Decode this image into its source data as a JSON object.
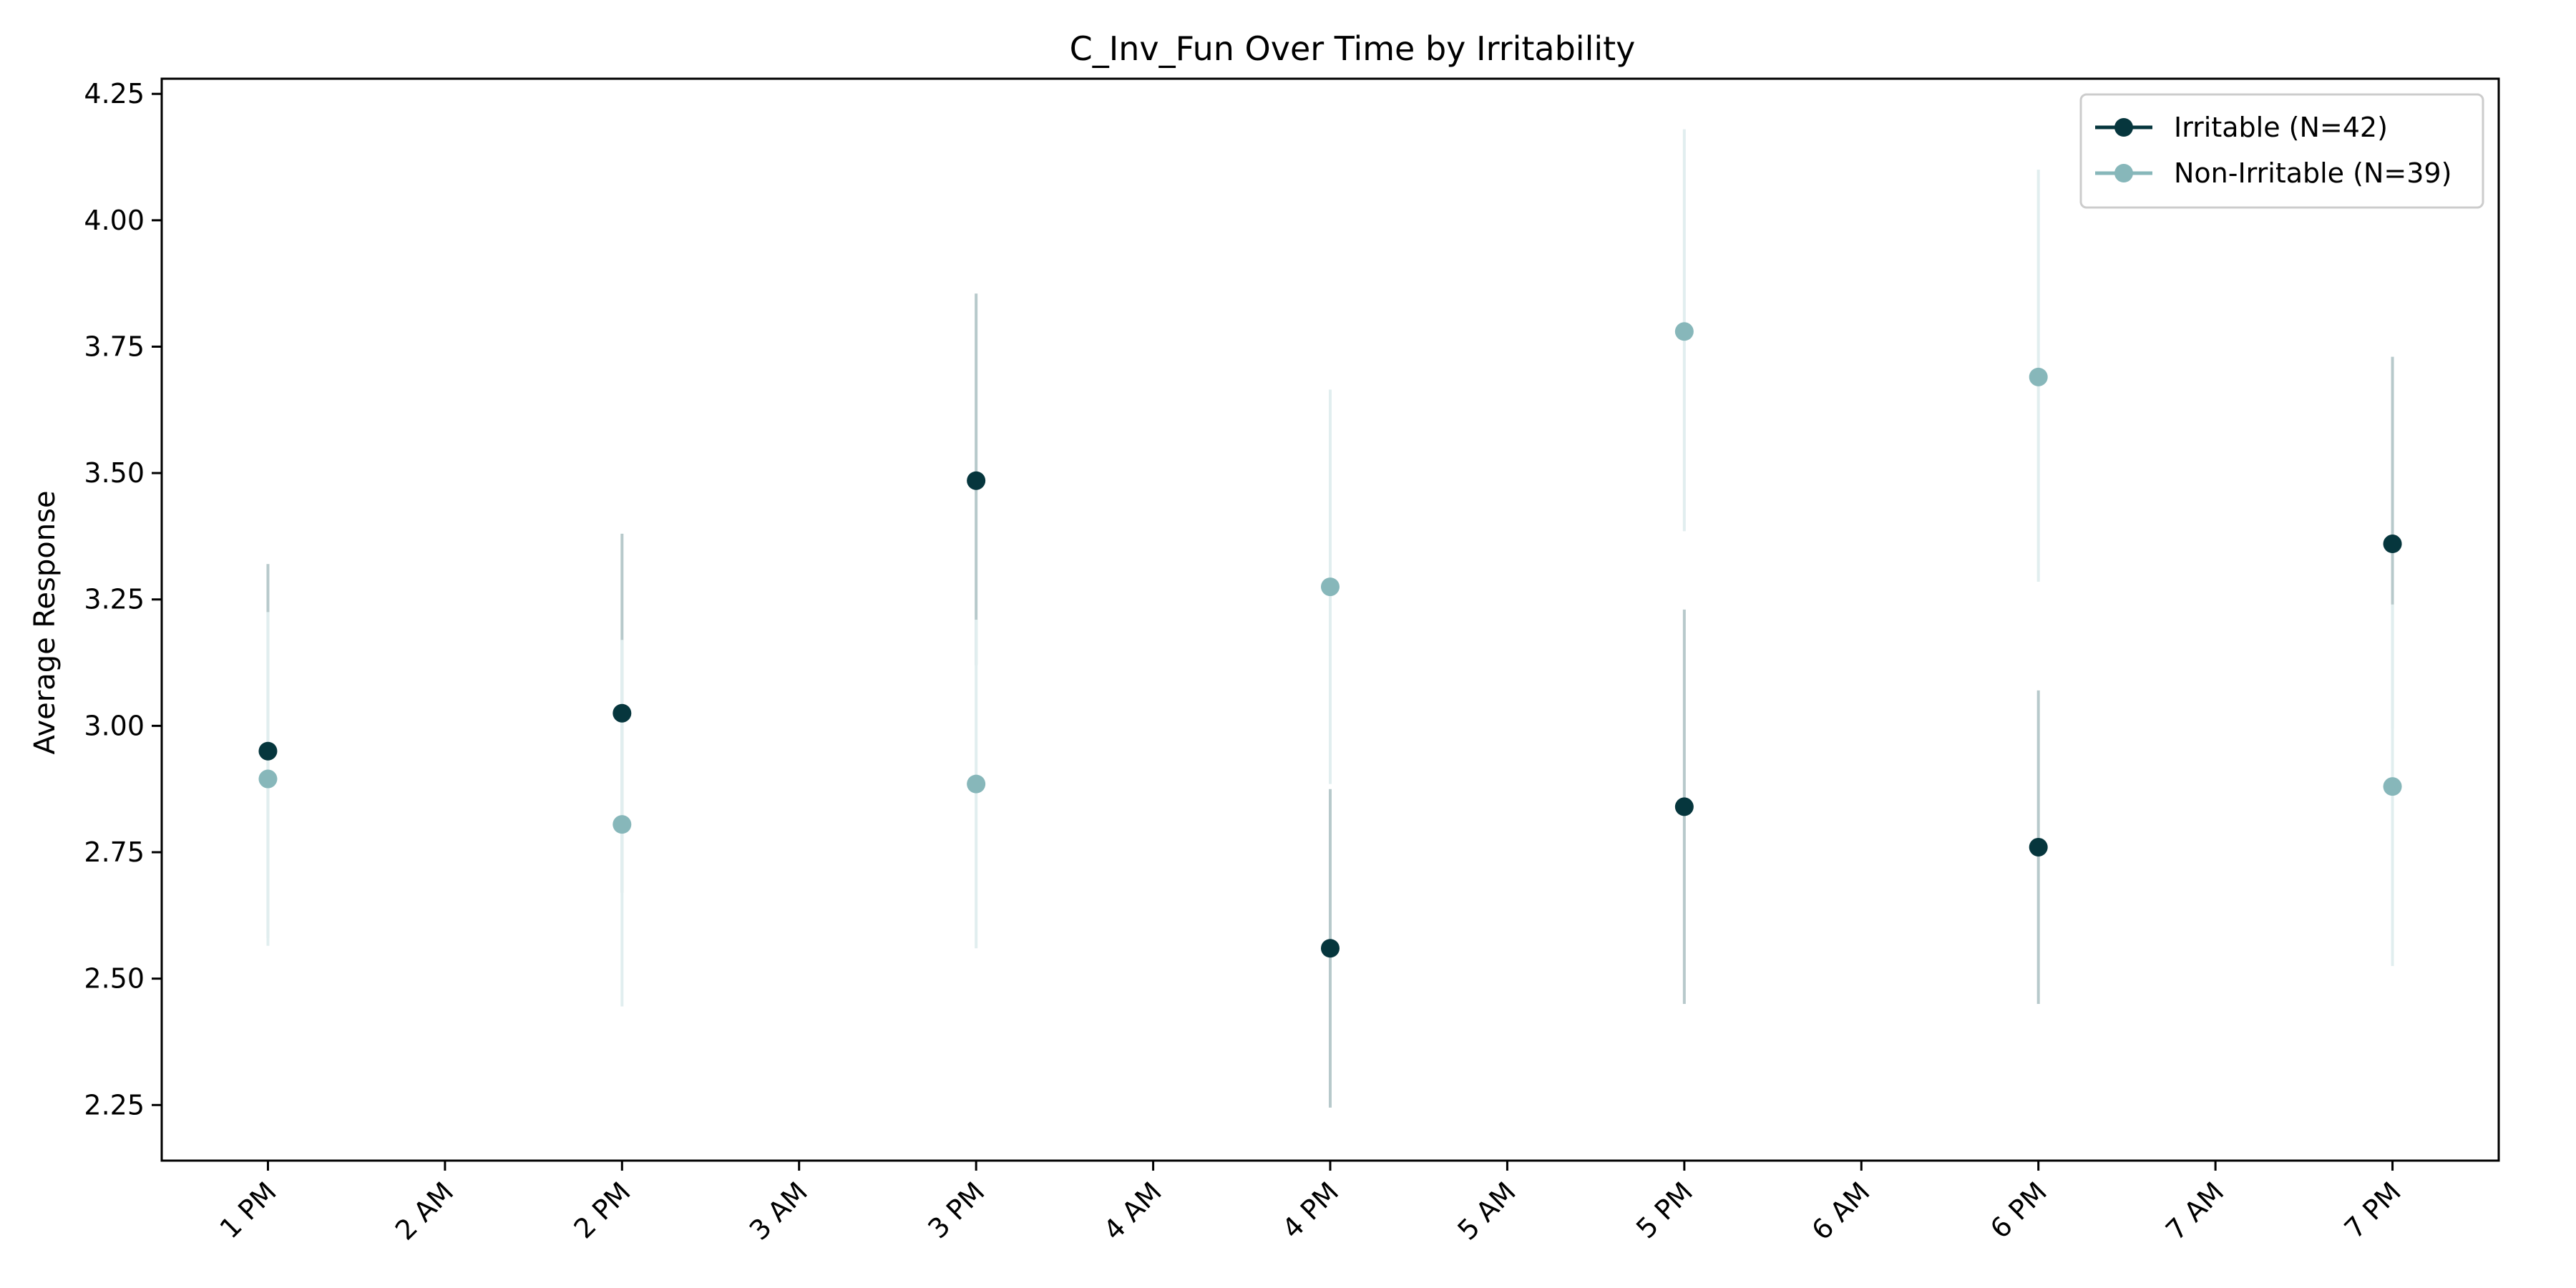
{
  "chart_data": {
    "type": "scatter",
    "title": "C_Inv_Fun Over Time by Irritability",
    "xlabel": "",
    "ylabel": "Average Response",
    "categories": [
      "1 PM",
      "2 AM",
      "2 PM",
      "3 AM",
      "3 PM",
      "4 AM",
      "4 PM",
      "5 AM",
      "5 PM",
      "6 AM",
      "6 PM",
      "7 AM",
      "7 PM"
    ],
    "ylim": [
      2.14,
      4.28
    ],
    "yticks": [
      "2.25",
      "2.50",
      "2.75",
      "3.00",
      "3.25",
      "3.50",
      "3.75",
      "4.00",
      "4.25"
    ],
    "grid": false,
    "legend_position": "top-right",
    "series": [
      {
        "name": "Irritable (N=42)",
        "color": "#06363d",
        "errorbar_color": "#b7c9cb",
        "points": [
          {
            "x": "1 PM",
            "y": 2.95,
            "low": 2.58,
            "high": 3.32
          },
          {
            "x": "2 PM",
            "y": 3.025,
            "low": 2.67,
            "high": 3.38
          },
          {
            "x": "3 PM",
            "y": 3.485,
            "low": 3.12,
            "high": 3.855
          },
          {
            "x": "4 PM",
            "y": 2.56,
            "low": 2.245,
            "high": 2.875
          },
          {
            "x": "5 PM",
            "y": 2.84,
            "low": 2.45,
            "high": 3.23
          },
          {
            "x": "6 PM",
            "y": 2.76,
            "low": 2.45,
            "high": 3.07
          },
          {
            "x": "7 PM",
            "y": 3.36,
            "low": 2.995,
            "high": 3.73
          }
        ]
      },
      {
        "name": "Non-Irritable (N=39)",
        "color": "#87b7ba",
        "errorbar_color": "#e1eeef",
        "points": [
          {
            "x": "1 PM",
            "y": 2.895,
            "low": 2.565,
            "high": 3.225
          },
          {
            "x": "2 PM",
            "y": 2.805,
            "low": 2.445,
            "high": 3.17
          },
          {
            "x": "3 PM",
            "y": 2.885,
            "low": 2.56,
            "high": 3.21
          },
          {
            "x": "4 PM",
            "y": 3.275,
            "low": 2.885,
            "high": 3.665
          },
          {
            "x": "5 PM",
            "y": 3.78,
            "low": 3.385,
            "high": 4.18
          },
          {
            "x": "6 PM",
            "y": 3.69,
            "low": 3.285,
            "high": 4.1
          },
          {
            "x": "7 PM",
            "y": 2.88,
            "low": 2.525,
            "high": 3.24
          }
        ]
      }
    ]
  }
}
